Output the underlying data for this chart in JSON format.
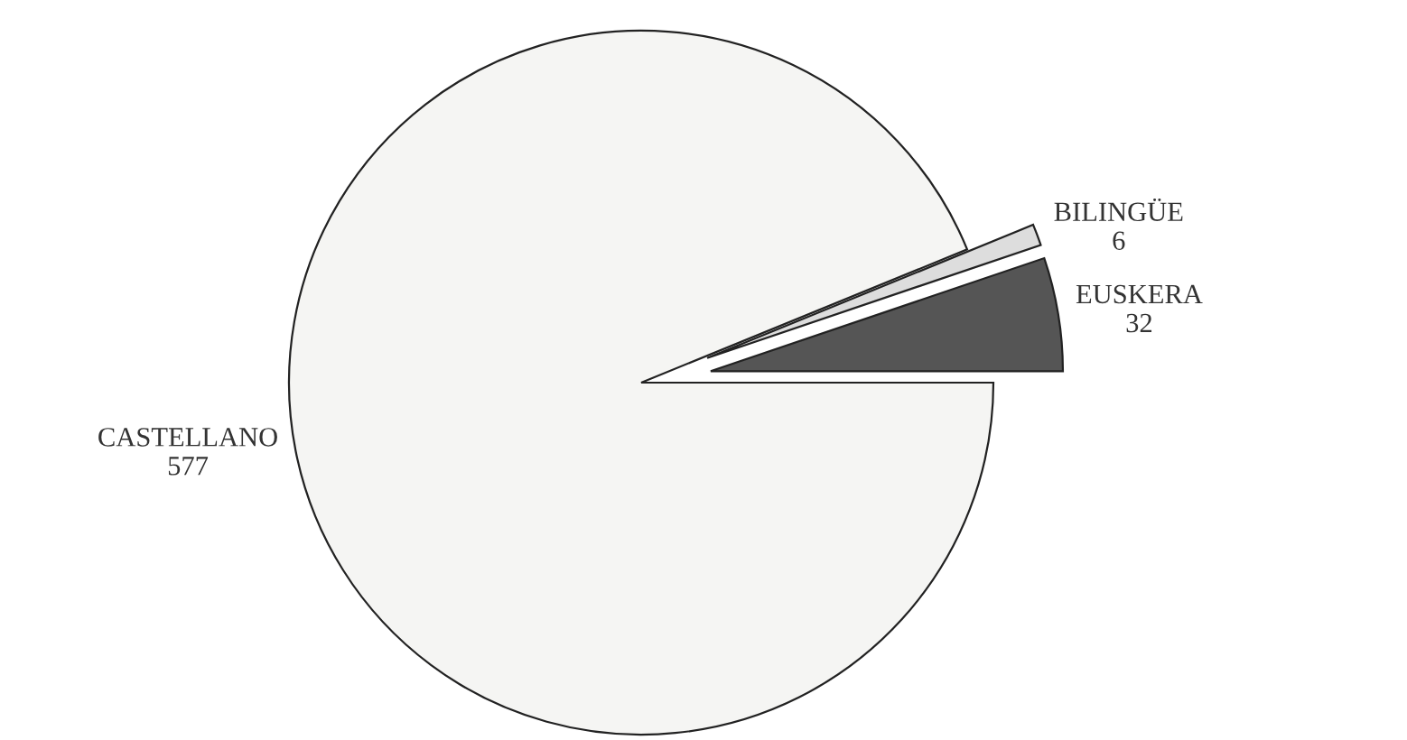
{
  "chart_data": {
    "type": "pie",
    "categories": [
      "EUSKERA",
      "BILINGÜE",
      "CASTELLANO"
    ],
    "values": [
      32,
      6,
      577
    ],
    "colors": [
      "#555555",
      "#dddddd",
      "#f5f5f3"
    ],
    "data_labels": true
  }
}
